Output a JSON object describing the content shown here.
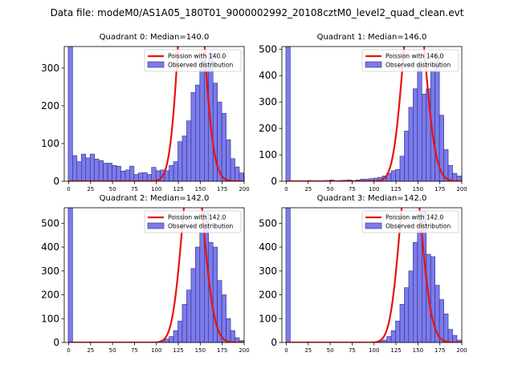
{
  "suptitle": "Data file: modeM0/AS1A05_180T01_9000002992_20108cztM0_level2_quad_clean.evt",
  "colors": {
    "bar_fill": "#7b7bea",
    "bar_edge": "#2d2d8a",
    "line": "#e8120f"
  },
  "chart_data": [
    {
      "type": "bar",
      "title": "Quadrant 0: Median=140.0",
      "xlim": [
        -5,
        200
      ],
      "ylim": [
        0,
        357
      ],
      "xticks": [
        0,
        25,
        50,
        75,
        100,
        125,
        150,
        175,
        200
      ],
      "yticks": [
        0,
        100,
        200,
        300
      ],
      "bin_start": -0.5,
      "bin_width": 5,
      "values": [
        357,
        68,
        52,
        72,
        62,
        72,
        59,
        55,
        48,
        48,
        42,
        40,
        27,
        30,
        40,
        18,
        22,
        23,
        18,
        37,
        28,
        30,
        28,
        42,
        52,
        105,
        120,
        160,
        235,
        255,
        325,
        300,
        340,
        260,
        210,
        180,
        110,
        60,
        38,
        22,
        18,
        12
      ],
      "poisson_mean": 140,
      "poisson_total": 4850,
      "legend": {
        "line_label": "Poission with 140.0",
        "bar_label": "Observed distribution"
      }
    },
    {
      "type": "bar",
      "title": "Quadrant 1: Median=146.0",
      "xlim": [
        -5,
        200
      ],
      "ylim": [
        0,
        510
      ],
      "xticks": [
        0,
        25,
        50,
        75,
        100,
        125,
        150,
        175,
        200
      ],
      "yticks": [
        0,
        100,
        200,
        300,
        400,
        500
      ],
      "bin_start": -0.5,
      "bin_width": 5,
      "values": [
        510,
        0,
        0,
        0,
        0,
        3,
        0,
        0,
        0,
        3,
        5,
        2,
        3,
        4,
        5,
        3,
        5,
        8,
        8,
        10,
        12,
        15,
        20,
        30,
        40,
        45,
        95,
        190,
        280,
        350,
        440,
        330,
        350,
        420,
        480,
        250,
        120,
        60,
        30,
        20,
        5
      ],
      "poisson_mean": 146,
      "poisson_total": 4800,
      "legend": {
        "line_label": "Poission with 146.0",
        "bar_label": "Observed distribution"
      }
    },
    {
      "type": "bar",
      "title": "Quadrant 2: Median=142.0",
      "xlim": [
        -5,
        200
      ],
      "ylim": [
        0,
        565
      ],
      "xticks": [
        0,
        25,
        50,
        75,
        100,
        125,
        150,
        175,
        200
      ],
      "yticks": [
        0,
        100,
        200,
        300,
        400,
        500
      ],
      "bin_start": -0.5,
      "bin_width": 5,
      "values": [
        565,
        0,
        0,
        0,
        0,
        0,
        0,
        0,
        0,
        0,
        0,
        0,
        0,
        0,
        0,
        0,
        0,
        0,
        0,
        0,
        2,
        8,
        15,
        25,
        50,
        90,
        160,
        220,
        310,
        400,
        460,
        550,
        420,
        400,
        260,
        200,
        100,
        50,
        20,
        8,
        3
      ],
      "poisson_mean": 142,
      "poisson_total": 4900,
      "legend": {
        "line_label": "Poission with 142.0",
        "bar_label": "Observed distribution"
      }
    },
    {
      "type": "bar",
      "title": "Quadrant 3: Median=142.0",
      "xlim": [
        -5,
        200
      ],
      "ylim": [
        0,
        565
      ],
      "xticks": [
        0,
        25,
        50,
        75,
        100,
        125,
        150,
        175,
        200
      ],
      "yticks": [
        0,
        100,
        200,
        300,
        400,
        500
      ],
      "bin_start": -0.5,
      "bin_width": 5,
      "values": [
        565,
        0,
        0,
        0,
        0,
        0,
        0,
        0,
        0,
        0,
        0,
        0,
        0,
        0,
        0,
        0,
        0,
        0,
        0,
        0,
        0,
        5,
        10,
        25,
        50,
        90,
        160,
        230,
        300,
        420,
        470,
        550,
        370,
        360,
        240,
        180,
        120,
        55,
        30,
        10,
        4
      ],
      "poisson_mean": 142,
      "poisson_total": 4850,
      "legend": {
        "line_label": "Poission with 142.0",
        "bar_label": "Observed distribution"
      }
    }
  ]
}
